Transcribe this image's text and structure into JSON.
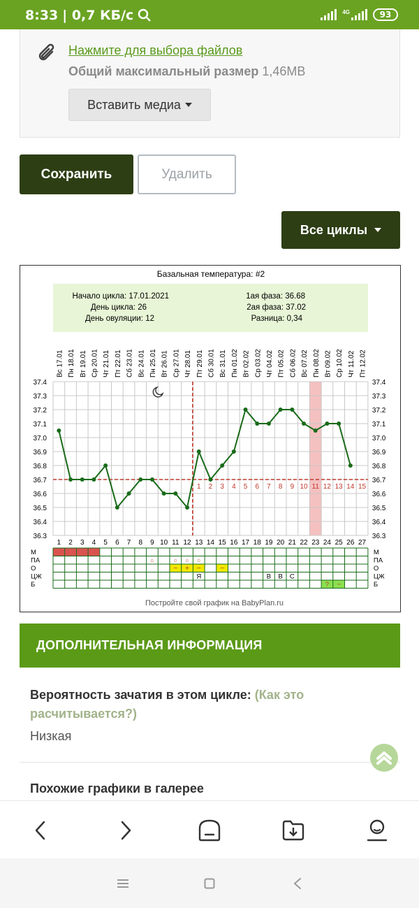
{
  "status_bar": {
    "time": "8:33",
    "speed": "| 0,7 КБ/с",
    "network": "4G",
    "battery": "93"
  },
  "attach": {
    "link": "Нажмите для выбора файлов ",
    "max_label": "Общий максимальный размер",
    "max_value": "1,46MB",
    "media_button": "Вставить медиа"
  },
  "buttons": {
    "save": "Сохранить",
    "delete": "Удалить",
    "all_cycles": "Все циклы"
  },
  "chart_data": {
    "type": "line",
    "title": "Базальная температура: #2",
    "info": {
      "cycle_start": "Начало цикла: 17.01.2021",
      "cycle_day": "День цикла: 26",
      "ovulation_day": "День овуляции: 12",
      "phase1": "1ая фаза: 36.68",
      "phase2": "2ая фаза: 37.02",
      "diff": "Разница: 0,34"
    },
    "dates": [
      "Вс 17.01",
      "Пн 18.01",
      "Вт 19.01",
      "Ср 20.01",
      "Чт 21.01",
      "Пт 22.01",
      "Сб 23.01",
      "Вс 24.01",
      "Пн 25.01",
      "Вт 26.01",
      "Ср 27.01",
      "Чт 28.01",
      "Пт 29.01",
      "Сб 30.01",
      "Вс 31.01",
      "Пн 01.02",
      "Вт 02.02",
      "Ср 03.02",
      "Чт 04.02",
      "Пт 05.02",
      "Сб 06.02",
      "Вс 07.02",
      "Пн 08.02",
      "Вт 09.02",
      "Ср 10.02",
      "Чт 11.02",
      "Пт 12.02"
    ],
    "days": [
      1,
      2,
      3,
      4,
      5,
      6,
      7,
      8,
      9,
      10,
      11,
      12,
      13,
      14,
      15,
      16,
      17,
      18,
      19,
      20,
      21,
      22,
      23,
      24,
      25,
      26,
      27
    ],
    "y_ticks": [
      "37.4",
      "37.3",
      "37.2",
      "37.1",
      "37.0",
      "36.9",
      "36.8",
      "36.7",
      "36.6",
      "36.5",
      "36.4",
      "36.3"
    ],
    "ylim": [
      36.3,
      37.4
    ],
    "temps": [
      37.05,
      36.7,
      36.7,
      36.7,
      36.8,
      36.5,
      36.6,
      36.7,
      36.7,
      36.6,
      36.6,
      36.5,
      36.9,
      36.7,
      36.8,
      36.9,
      37.2,
      37.1,
      37.1,
      37.2,
      37.2,
      37.1,
      37.05,
      37.1,
      37.1,
      36.8,
      null
    ],
    "coverline": 36.7,
    "ovulation_line_day": 12,
    "highlight_day": 23,
    "luteal_labels": [
      "1",
      "2",
      "3",
      "4",
      "5",
      "6",
      "7",
      "8",
      "9",
      "10",
      "11",
      "12",
      "13",
      "14",
      "15"
    ],
    "row_labels": [
      "М",
      "ПА",
      "О",
      "ЦЖ",
      "Б"
    ],
    "menses_days": [
      1,
      2,
      3,
      4
    ],
    "pa_days": [
      9,
      11,
      12,
      13
    ],
    "pa_mark": "○",
    "o_marks": [
      {
        "day": 11,
        "text": "−"
      },
      {
        "day": 12,
        "text": "+"
      },
      {
        "day": 13,
        "text": "−"
      },
      {
        "day": 15,
        "text": "−"
      }
    ],
    "cz_marks": [
      {
        "day": 13,
        "text": "Я"
      },
      {
        "day": 19,
        "text": "В"
      },
      {
        "day": 20,
        "text": "В"
      },
      {
        "day": 21,
        "text": "С"
      }
    ],
    "b_marks": [
      {
        "day": 24,
        "text": "?"
      },
      {
        "day": 25,
        "text": "−"
      }
    ],
    "footer": "Постройте свой график на BabyPlan.ru",
    "colors": {
      "line": "#1a6b1a",
      "coverline": "#c0392b",
      "highlight": "#f5c0c0",
      "info_bg": "#e8f5d6",
      "menses": "#d9534f",
      "yellow": "#f0e800",
      "green": "#8be04e"
    }
  },
  "info_section": {
    "header": "ДОПОЛНИТЕЛЬНАЯ ИНФОРМАЦИЯ",
    "prob_label": "Вероятность зачатия в этом цикле:",
    "prob_link": "(Как это расчитывается?)",
    "prob_value": "Низкая",
    "similar": "Похожие графики в галерее"
  }
}
